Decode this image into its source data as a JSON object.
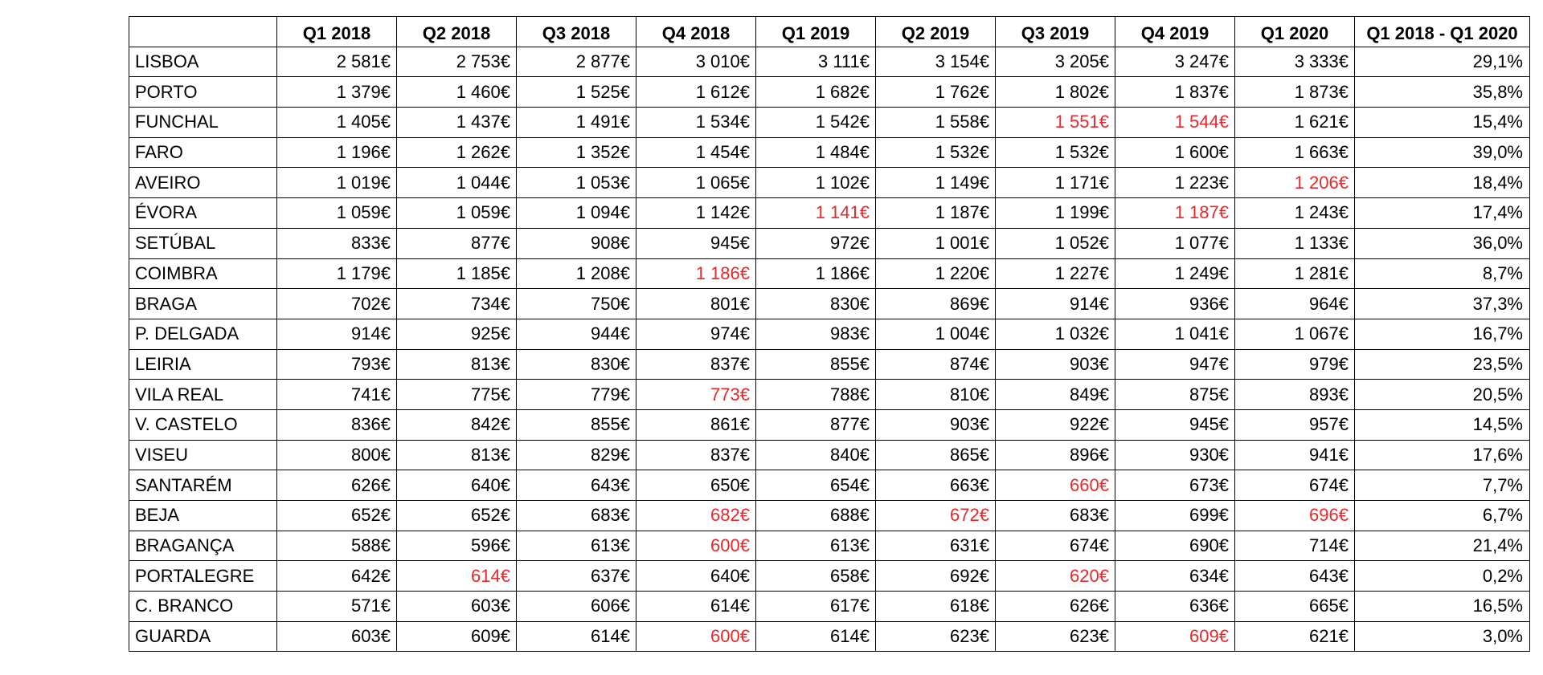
{
  "table": {
    "headers": [
      "",
      "Q1 2018",
      "Q2 2018",
      "Q3 2018",
      "Q4 2018",
      "Q1 2019",
      "Q2 2019",
      "Q3 2019",
      "Q4 2019",
      "Q1 2020",
      "Q1 2018 - Q1 2020"
    ],
    "highlight_color": "#e8282a",
    "rows": [
      {
        "city": "LISBOA",
        "values": [
          "2 581€",
          "2 753€",
          "2 877€",
          "3 010€",
          "3 111€",
          "3 154€",
          "3 205€",
          "3 247€",
          "3 333€"
        ],
        "change": "29,1%",
        "drops": []
      },
      {
        "city": "PORTO",
        "values": [
          "1 379€",
          "1 460€",
          "1 525€",
          "1 612€",
          "1 682€",
          "1 762€",
          "1 802€",
          "1 837€",
          "1 873€"
        ],
        "change": "35,8%",
        "drops": []
      },
      {
        "city": "FUNCHAL",
        "values": [
          "1 405€",
          "1 437€",
          "1 491€",
          "1 534€",
          "1 542€",
          "1 558€",
          "1 551€",
          "1 544€",
          "1 621€"
        ],
        "change": "15,4%",
        "drops": [
          6,
          7
        ]
      },
      {
        "city": "FARO",
        "values": [
          "1 196€",
          "1 262€",
          "1 352€",
          "1 454€",
          "1 484€",
          "1 532€",
          "1 532€",
          "1 600€",
          "1 663€"
        ],
        "change": "39,0%",
        "drops": []
      },
      {
        "city": "AVEIRO",
        "values": [
          "1 019€",
          "1 044€",
          "1 053€",
          "1 065€",
          "1 102€",
          "1 149€",
          "1 171€",
          "1 223€",
          "1 206€"
        ],
        "change": "18,4%",
        "drops": [
          8
        ]
      },
      {
        "city": "ÉVORA",
        "values": [
          "1 059€",
          "1 059€",
          "1 094€",
          "1 142€",
          "1 141€",
          "1 187€",
          "1 199€",
          "1 187€",
          "1 243€"
        ],
        "change": "17,4%",
        "drops": [
          4,
          7
        ]
      },
      {
        "city": "SETÚBAL",
        "values": [
          "833€",
          "877€",
          "908€",
          "945€",
          "972€",
          "1 001€",
          "1 052€",
          "1 077€",
          "1 133€"
        ],
        "change": "36,0%",
        "drops": []
      },
      {
        "city": "COIMBRA",
        "values": [
          "1 179€",
          "1 185€",
          "1 208€",
          "1 186€",
          "1 186€",
          "1 220€",
          "1 227€",
          "1 249€",
          "1 281€"
        ],
        "change": "8,7%",
        "drops": [
          3
        ]
      },
      {
        "city": "BRAGA",
        "values": [
          "702€",
          "734€",
          "750€",
          "801€",
          "830€",
          "869€",
          "914€",
          "936€",
          "964€"
        ],
        "change": "37,3%",
        "drops": []
      },
      {
        "city": "P. DELGADA",
        "values": [
          "914€",
          "925€",
          "944€",
          "974€",
          "983€",
          "1 004€",
          "1 032€",
          "1 041€",
          "1 067€"
        ],
        "change": "16,7%",
        "drops": []
      },
      {
        "city": "LEIRIA",
        "values": [
          "793€",
          "813€",
          "830€",
          "837€",
          "855€",
          "874€",
          "903€",
          "947€",
          "979€"
        ],
        "change": "23,5%",
        "drops": []
      },
      {
        "city": "VILA REAL",
        "values": [
          "741€",
          "775€",
          "779€",
          "773€",
          "788€",
          "810€",
          "849€",
          "875€",
          "893€"
        ],
        "change": "20,5%",
        "drops": [
          3
        ]
      },
      {
        "city": "V. CASTELO",
        "values": [
          "836€",
          "842€",
          "855€",
          "861€",
          "877€",
          "903€",
          "922€",
          "945€",
          "957€"
        ],
        "change": "14,5%",
        "drops": []
      },
      {
        "city": "VISEU",
        "values": [
          "800€",
          "813€",
          "829€",
          "837€",
          "840€",
          "865€",
          "896€",
          "930€",
          "941€"
        ],
        "change": "17,6%",
        "drops": []
      },
      {
        "city": "SANTARÉM",
        "values": [
          "626€",
          "640€",
          "643€",
          "650€",
          "654€",
          "663€",
          "660€",
          "673€",
          "674€"
        ],
        "change": "7,7%",
        "drops": [
          6
        ]
      },
      {
        "city": "BEJA",
        "values": [
          "652€",
          "652€",
          "683€",
          "682€",
          "688€",
          "672€",
          "683€",
          "699€",
          "696€"
        ],
        "change": "6,7%",
        "drops": [
          3,
          5,
          8
        ]
      },
      {
        "city": "BRAGANÇA",
        "values": [
          "588€",
          "596€",
          "613€",
          "600€",
          "613€",
          "631€",
          "674€",
          "690€",
          "714€"
        ],
        "change": "21,4%",
        "drops": [
          3
        ]
      },
      {
        "city": "PORTALEGRE",
        "values": [
          "642€",
          "614€",
          "637€",
          "640€",
          "658€",
          "692€",
          "620€",
          "634€",
          "643€"
        ],
        "change": "0,2%",
        "drops": [
          1,
          6
        ]
      },
      {
        "city": "C. BRANCO",
        "values": [
          "571€",
          "603€",
          "606€",
          "614€",
          "617€",
          "618€",
          "626€",
          "636€",
          "665€"
        ],
        "change": "16,5%",
        "drops": []
      },
      {
        "city": "GUARDA",
        "values": [
          "603€",
          "609€",
          "614€",
          "600€",
          "614€",
          "623€",
          "623€",
          "609€",
          "621€"
        ],
        "change": "3,0%",
        "drops": [
          3,
          7
        ]
      }
    ]
  }
}
